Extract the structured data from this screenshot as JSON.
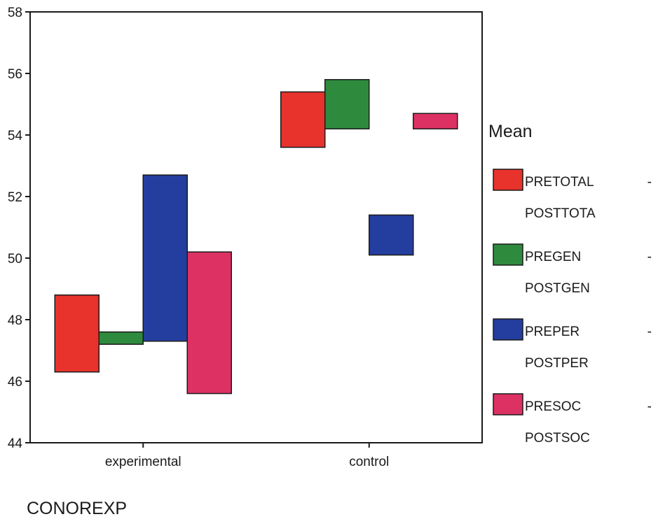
{
  "chart_data": {
    "type": "bar",
    "subtype": "floating-bar (difference bars from first to second variable)",
    "xlabel": "CONOREXP",
    "ylabel": "",
    "ylim": [
      44,
      58
    ],
    "yticks": [
      44,
      46,
      48,
      50,
      52,
      54,
      56,
      58
    ],
    "grid": false,
    "legend_position": "right",
    "legend_title": "Mean",
    "categories": [
      "experimental",
      "control"
    ],
    "series": [
      {
        "name_top": "PRETOTAL",
        "name_bottom": "POSTTOTA",
        "dash": "-",
        "color": "#e8322c",
        "ranges": [
          [
            46.3,
            48.8
          ],
          [
            53.6,
            55.4
          ]
        ]
      },
      {
        "name_top": "PREGEN",
        "name_bottom": "POSTGEN",
        "dash": "-",
        "color": "#2e8b3e",
        "ranges": [
          [
            47.2,
            47.6
          ],
          [
            54.2,
            55.8
          ]
        ]
      },
      {
        "name_top": "PREPER",
        "name_bottom": "POSTPER",
        "dash": "-",
        "color": "#243e9f",
        "ranges": [
          [
            47.3,
            52.7
          ],
          [
            50.1,
            51.4
          ]
        ]
      },
      {
        "name_top": "PRESOC",
        "name_bottom": "POSTSOC",
        "dash": "-",
        "color": "#dd3163",
        "ranges": [
          [
            45.6,
            50.2
          ],
          [
            54.2,
            54.7
          ]
        ]
      }
    ]
  }
}
